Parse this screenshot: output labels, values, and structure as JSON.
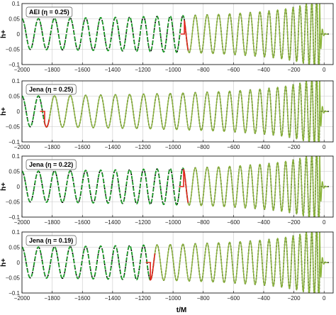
{
  "figure": {
    "xlabel": "t/M",
    "colors": {
      "green_dashed": "#1f9d2a",
      "black_dotted": "#000000",
      "red": "#e3231b",
      "olive": "#8ab43a",
      "grid": "#c8c8c8"
    }
  },
  "chart_data": [
    {
      "type": "line",
      "label": "AEI (η = 0.25)",
      "ylabel": "h+",
      "xlim": [
        -2000,
        60
      ],
      "ylim": [
        -0.1,
        0.1
      ],
      "xticks": [
        -2000,
        -1800,
        -1600,
        -1400,
        -1200,
        -1000,
        -800,
        -600,
        -400,
        -200,
        0
      ],
      "xtick_labels": [
        "−2000",
        "−1800",
        "−1600",
        "−1400",
        "−1200",
        "−1000",
        "−800",
        "−600",
        "−400",
        "−200",
        "0"
      ],
      "yticks": [
        -0.1,
        -0.05,
        0,
        0.05,
        0.1
      ],
      "ytick_labels": [
        "−0.1",
        "−0.05",
        "0",
        "0.05",
        "0.1"
      ],
      "grid": true,
      "params": {
        "A0": 0.05,
        "P0": 110,
        "nr_start": -950,
        "pn_end": -900,
        "merger": -30,
        "ringdown_end": 25
      },
      "series": [
        {
          "style": "black-dotted",
          "x_range": [
            -2000,
            -30
          ]
        },
        {
          "style": "green-dashed",
          "x_range": [
            -2000,
            -900
          ]
        },
        {
          "style": "red-transition",
          "x_range": [
            -950,
            -900
          ]
        },
        {
          "style": "olive-solid",
          "x_range": [
            -900,
            25
          ]
        }
      ]
    },
    {
      "type": "line",
      "label": "Jena (η = 0.25)",
      "ylabel": "h+",
      "xlim": [
        -2000,
        60
      ],
      "ylim": [
        -0.1,
        0.1
      ],
      "xticks": [
        -2000,
        -1800,
        -1600,
        -1400,
        -1200,
        -1000,
        -800,
        -600,
        -400,
        -200,
        0
      ],
      "xtick_labels": [
        "−2000",
        "−1800",
        "−1600",
        "−1400",
        "−1200",
        "−1000",
        "−800",
        "−600",
        "−400",
        "−200",
        "0"
      ],
      "yticks": [
        -0.1,
        -0.05,
        0,
        0.05,
        0.1
      ],
      "ytick_labels": [
        "−0.1",
        "−0.05",
        "0",
        "0.05",
        "0.1"
      ],
      "grid": true,
      "params": {
        "A0": 0.05,
        "P0": 110,
        "nr_start": -1880,
        "pn_end": -1820,
        "merger": -30,
        "ringdown_end": 25
      },
      "series": [
        {
          "style": "black-dotted",
          "x_range": [
            -2000,
            -30
          ]
        },
        {
          "style": "green-dashed",
          "x_range": [
            -2000,
            -1820
          ]
        },
        {
          "style": "red-transition",
          "x_range": [
            -1880,
            -1820
          ]
        },
        {
          "style": "olive-solid",
          "x_range": [
            -1820,
            25
          ]
        }
      ]
    },
    {
      "type": "line",
      "label": "Jena (η = 0.22)",
      "ylabel": "h+",
      "xlim": [
        -2000,
        60
      ],
      "ylim": [
        -0.1,
        0.1
      ],
      "xticks": [
        -2000,
        -1800,
        -1600,
        -1400,
        -1200,
        -1000,
        -800,
        -600,
        -400,
        -200,
        0
      ],
      "xtick_labels": [
        "−2000",
        "−1800",
        "−1600",
        "−1400",
        "−1200",
        "−1000",
        "−800",
        "−600",
        "−400",
        "−200",
        "0"
      ],
      "yticks": [
        -0.1,
        -0.05,
        0,
        0.05,
        0.1
      ],
      "ytick_labels": [
        "−0.1",
        "−0.05",
        "0",
        "0.05",
        "0.1"
      ],
      "grid": true,
      "params": {
        "A0": 0.05,
        "P0": 110,
        "nr_start": -960,
        "pn_end": -900,
        "merger": -30,
        "ringdown_end": 25
      },
      "series": [
        {
          "style": "black-dotted",
          "x_range": [
            -2000,
            -30
          ]
        },
        {
          "style": "green-dashed",
          "x_range": [
            -2000,
            -900
          ]
        },
        {
          "style": "red-transition",
          "x_range": [
            -960,
            -900
          ]
        },
        {
          "style": "olive-solid",
          "x_range": [
            -900,
            25
          ]
        }
      ]
    },
    {
      "type": "line",
      "label": "Jena (η = 0.19)",
      "ylabel": "h+",
      "xlim": [
        -2000,
        60
      ],
      "ylim": [
        -0.1,
        0.1
      ],
      "xticks": [
        -2000,
        -1800,
        -1600,
        -1400,
        -1200,
        -1000,
        -800,
        -600,
        -400,
        -200,
        0
      ],
      "xtick_labels": [
        "−2000",
        "−1800",
        "−1600",
        "−1400",
        "−1200",
        "−1000",
        "−800",
        "−600",
        "−400",
        "−200",
        "0"
      ],
      "yticks": [
        -0.1,
        -0.05,
        0,
        0.05,
        0.1
      ],
      "ytick_labels": [
        "−0.1",
        "−0.05",
        "0",
        "0.05",
        "0.1"
      ],
      "grid": true,
      "params": {
        "A0": 0.05,
        "P0": 110,
        "nr_start": -1180,
        "pn_end": -1120,
        "merger": -30,
        "ringdown_end": 25
      },
      "series": [
        {
          "style": "black-dotted",
          "x_range": [
            -2000,
            -30
          ]
        },
        {
          "style": "green-dashed",
          "x_range": [
            -2000,
            -1120
          ]
        },
        {
          "style": "red-transition",
          "x_range": [
            -1180,
            -1120
          ]
        },
        {
          "style": "olive-solid",
          "x_range": [
            -1120,
            25
          ]
        }
      ]
    }
  ]
}
